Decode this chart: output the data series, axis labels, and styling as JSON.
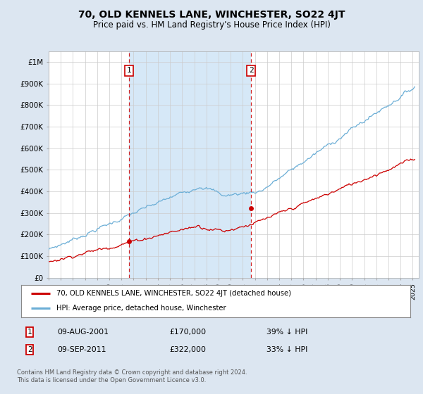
{
  "title": "70, OLD KENNELS LANE, WINCHESTER, SO22 4JT",
  "subtitle": "Price paid vs. HM Land Registry's House Price Index (HPI)",
  "ylabel_ticks": [
    "£0",
    "£100K",
    "£200K",
    "£300K",
    "£400K",
    "£500K",
    "£600K",
    "£700K",
    "£800K",
    "£900K",
    "£1M"
  ],
  "ytick_vals": [
    0,
    100000,
    200000,
    300000,
    400000,
    500000,
    600000,
    700000,
    800000,
    900000,
    1000000
  ],
  "ylim": [
    0,
    1050000
  ],
  "xlim_start": 1995.0,
  "xlim_end": 2025.5,
  "sale1_x": 2001.608,
  "sale1_y": 170000,
  "sale2_x": 2011.692,
  "sale2_y": 322000,
  "hpi_color": "#6baed6",
  "hpi_fill_color": "#d6e8f7",
  "sale_color": "#cc0000",
  "legend_label1": "70, OLD KENNELS LANE, WINCHESTER, SO22 4JT (detached house)",
  "legend_label2": "HPI: Average price, detached house, Winchester",
  "footnote": "Contains HM Land Registry data © Crown copyright and database right 2024.\nThis data is licensed under the Open Government Licence v3.0.",
  "background_color": "#dce6f1",
  "plot_bg_color": "#ffffff",
  "grid_color": "#cccccc",
  "sale1_date": "09-AUG-2001",
  "sale1_price": "£170,000",
  "sale1_hpi": "39% ↓ HPI",
  "sale2_date": "09-SEP-2011",
  "sale2_price": "£322,000",
  "sale2_hpi": "33% ↓ HPI"
}
